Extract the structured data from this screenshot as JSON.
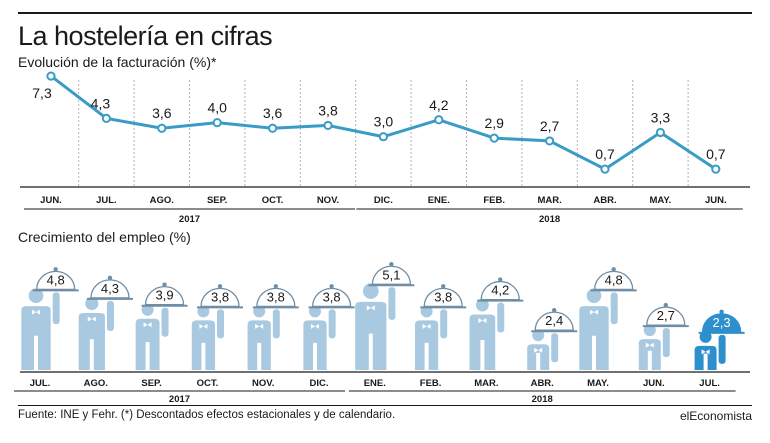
{
  "title": "La hostelería en cifras",
  "footer": {
    "source": "Fuente: INE y Fehr. (*) Descontados efectos estacionales y de calendario.",
    "brand": "elEconomista"
  },
  "colors": {
    "line": "#3a9cc6",
    "figure_light": "#a9c9e1",
    "figure_highlight": "#2e8fcd",
    "text": "#1a1a1a"
  },
  "chart_data": [
    {
      "type": "line",
      "title": "Evolución de la facturación (%)*",
      "categories": [
        "JUN.",
        "JUL.",
        "AGO.",
        "SEP.",
        "OCT.",
        "NOV.",
        "DIC.",
        "ENE.",
        "FEB.",
        "MAR.",
        "ABR.",
        "MAY.",
        "JUN."
      ],
      "value_labels": [
        "7,3",
        "4,3",
        "3,6",
        "4,0",
        "3,6",
        "3,8",
        "3,0",
        "4,2",
        "2,9",
        "2,7",
        "0,7",
        "3,3",
        "0,7"
      ],
      "values": [
        7.3,
        4.3,
        3.6,
        4.0,
        3.6,
        3.8,
        3.0,
        4.2,
        2.9,
        2.7,
        0.7,
        3.3,
        0.7
      ],
      "years": [
        {
          "label": "2017",
          "span": [
            0,
            5
          ]
        },
        {
          "label": "2018",
          "span": [
            6,
            12
          ]
        }
      ],
      "grid": "vertical dashed",
      "icon": "line-with-circle-markers"
    },
    {
      "type": "bar",
      "title": "Crecimiento del empleo (%)",
      "categories": [
        "JUL.",
        "AGO.",
        "SEP.",
        "OCT.",
        "NOV.",
        "DIC.",
        "ENE.",
        "FEB.",
        "MAR.",
        "ABR.",
        "MAY.",
        "JUN.",
        "JUL."
      ],
      "value_labels": [
        "4,8",
        "4,3",
        "3,9",
        "3,8",
        "3,8",
        "3,8",
        "5,1",
        "3,8",
        "4,2",
        "2,4",
        "4,8",
        "2,7",
        "2,3"
      ],
      "values": [
        4.8,
        4.3,
        3.9,
        3.8,
        3.8,
        3.8,
        5.1,
        3.8,
        4.2,
        2.4,
        4.8,
        2.7,
        2.3
      ],
      "highlight_index": 12,
      "years": [
        {
          "label": "2017",
          "span": [
            0,
            5
          ]
        },
        {
          "label": "2018",
          "span": [
            6,
            12
          ]
        }
      ],
      "marker": "waiter-with-cloche-icon"
    }
  ]
}
